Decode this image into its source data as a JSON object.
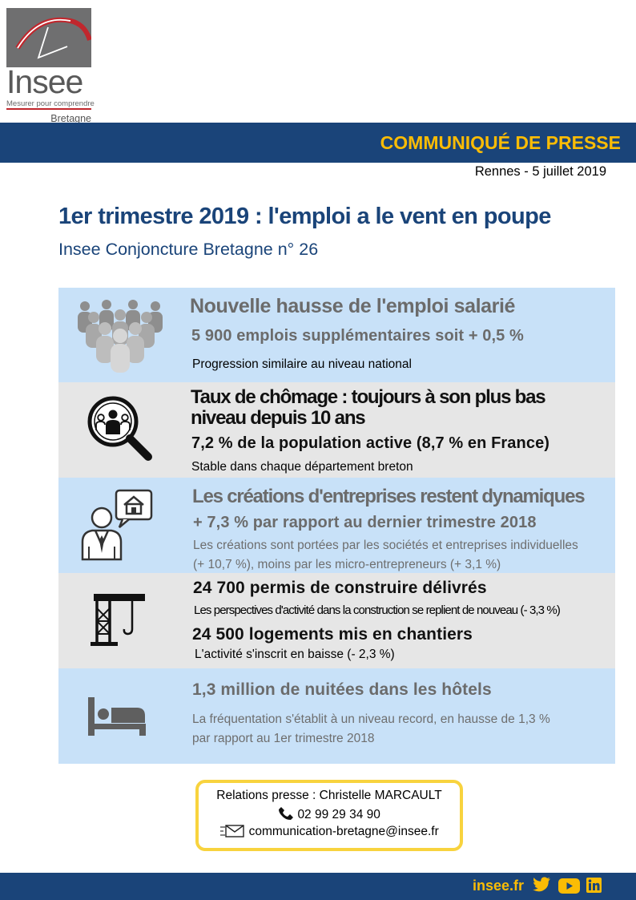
{
  "logo": {
    "name": "Insee",
    "tagline": "Mesurer pour comprendre",
    "region": "Bretagne"
  },
  "header": {
    "banner": "COMMUNIQUÉ DE PRESSE",
    "location_date": "Rennes - 5 juillet 2019"
  },
  "title": "1er trimestre 2019 : l'emploi a le vent en poupe",
  "subtitle": "Insee Conjoncture Bretagne n° 26",
  "sections": [
    {
      "icon": "people-crowd-icon",
      "heading": "Nouvelle hausse de l'emploi salarié",
      "highlight": "5 900 emplois supplémentaires soit + 0,5 %",
      "note": "Progression similaire au niveau national"
    },
    {
      "icon": "magnifier-people-icon",
      "heading_line1": "Taux de chômage : toujours à son plus bas",
      "heading_line2": "niveau depuis 10 ans",
      "highlight": "7,2 % de la population active (8,7 % en France)",
      "note": "Stable dans chaque département breton"
    },
    {
      "icon": "businessman-house-icon",
      "heading": "Les créations d'entreprises restent dynamiques",
      "highlight": "+ 7,3 % par rapport au dernier trimestre 2018",
      "note_line1": "Les créations sont portées par les sociétés et entreprises individuelles",
      "note_line2": "(+ 10,7 %), moins par les micro-entrepreneurs (+ 3,1 %)"
    },
    {
      "icon": "crane-icon",
      "highlight1": "24 700 permis de construire délivrés",
      "note1": "Les perspectives d'activité dans la construction se replient de nouveau (- 3,3  %)",
      "highlight2": "24 500 logements mis en chantiers",
      "note2": "L'activité s'inscrit en baisse (- 2,3 %)"
    },
    {
      "icon": "bed-icon",
      "heading": "1,3 million de nuitées dans les hôtels",
      "note_line1": "La fréquentation s'établit à un niveau record, en hausse de 1,3 %",
      "note_line2": "par rapport au 1er trimestre 2018"
    }
  ],
  "contact": {
    "label": "Relations presse : Christelle MARCAULT",
    "phone": "02 99 29 34 90",
    "email": "communication-bretagne@insee.fr"
  },
  "footer": {
    "link": "insee.fr",
    "social": [
      "twitter-icon",
      "youtube-icon",
      "linkedin-icon"
    ]
  },
  "colors": {
    "navy": "#1a4479",
    "gold": "#fbbc05",
    "light_blue": "#c8e1f8",
    "light_grey": "#e6e6e6"
  }
}
